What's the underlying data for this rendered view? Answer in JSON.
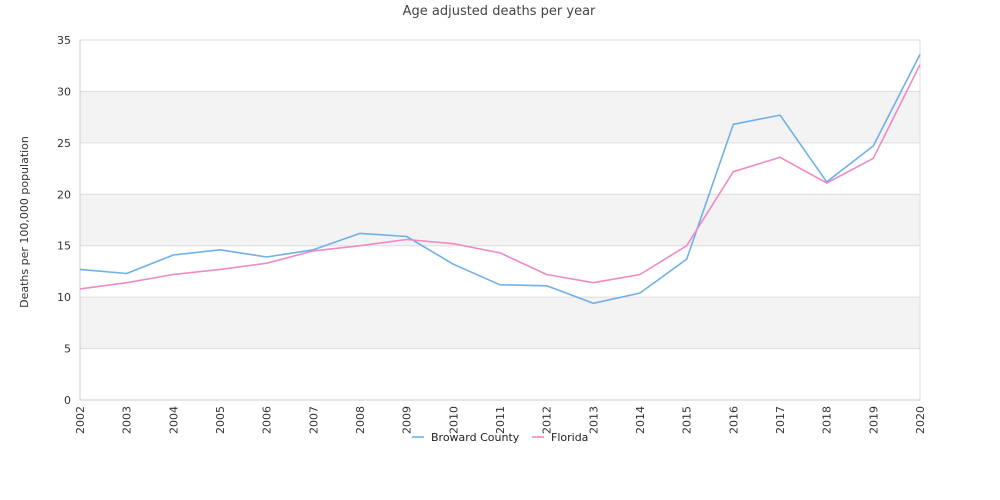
{
  "chart_data": {
    "type": "line",
    "title": "Age adjusted deaths per year",
    "xlabel": "",
    "ylabel": "Deaths per 100,000 population",
    "ylim": [
      0,
      35
    ],
    "yticks": [
      0,
      5,
      10,
      15,
      20,
      25,
      30,
      35
    ],
    "grid": "alternating horizontal bands",
    "legend_position": "bottom",
    "categories": [
      "2002",
      "2003",
      "2004",
      "2005",
      "2006",
      "2007",
      "2008",
      "2009",
      "2010",
      "2011",
      "2012",
      "2013",
      "2014",
      "2015",
      "2016",
      "2017",
      "2018",
      "2019",
      "2020"
    ],
    "series": [
      {
        "name": "Broward County",
        "color": "#6fb0ea",
        "values": [
          12.7,
          12.3,
          14.1,
          14.6,
          13.9,
          14.6,
          16.2,
          15.9,
          13.2,
          11.2,
          11.1,
          9.4,
          10.4,
          13.7,
          26.8,
          27.7,
          21.2,
          24.7,
          33.6
        ]
      },
      {
        "name": "Florida",
        "color": "#ee8ac4",
        "values": [
          10.8,
          11.4,
          12.2,
          12.7,
          13.3,
          14.5,
          15.0,
          15.6,
          15.2,
          14.3,
          12.2,
          11.4,
          12.2,
          15.0,
          22.2,
          23.6,
          21.1,
          23.5,
          32.6
        ]
      }
    ]
  }
}
